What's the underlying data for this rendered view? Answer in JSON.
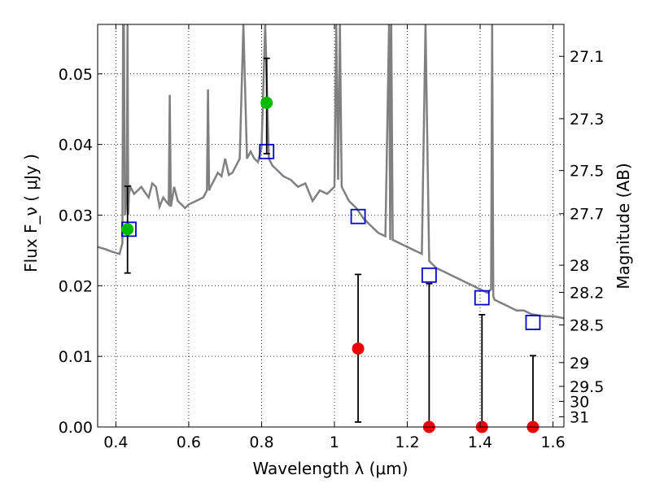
{
  "chart_data": {
    "type": "scatter",
    "xlabel": "Wavelength  λ (μm)",
    "ylabel": "Flux  F_ν  ( μJy )",
    "y2label": "Magnitude (AB)",
    "xlim": [
      0.35,
      1.63
    ],
    "ylim": [
      0.0,
      0.057
    ],
    "grid": true,
    "x_ticks": [
      0.4,
      0.6,
      0.8,
      1.0,
      1.2,
      1.4,
      1.6
    ],
    "x_tick_labels": [
      "0.4",
      "0.6",
      "0.8",
      "1",
      "1.2",
      "1.4",
      "1.6"
    ],
    "y_ticks": [
      0.0,
      0.01,
      0.02,
      0.03,
      0.04,
      0.05
    ],
    "y_tick_labels": [
      "0.00",
      "0.01",
      "0.02",
      "0.03",
      "0.04",
      "0.05"
    ],
    "mag_ticks": [
      "27.1",
      "27.3",
      "27.5",
      "27.7",
      "28",
      "28.2",
      "28.5",
      "29",
      "29.5",
      "30",
      "31"
    ],
    "colors": {
      "model": "#808080",
      "model_photometry": "#0000cc",
      "detection": "#00bb00",
      "upper_limit": "#ee0000",
      "error_bar": "#000000"
    },
    "series": [
      {
        "kind": "model_spectrum",
        "x": [
          0.35,
          0.37,
          0.39,
          0.41,
          0.418,
          0.42,
          0.422,
          0.425,
          0.43,
          0.432,
          0.434,
          0.436,
          0.44,
          0.445,
          0.45,
          0.46,
          0.47,
          0.48,
          0.49,
          0.5,
          0.51,
          0.52,
          0.53,
          0.54,
          0.545,
          0.548,
          0.551,
          0.56,
          0.57,
          0.58,
          0.59,
          0.6,
          0.62,
          0.64,
          0.65,
          0.653,
          0.656,
          0.66,
          0.67,
          0.68,
          0.69,
          0.7,
          0.71,
          0.72,
          0.73,
          0.74,
          0.75,
          0.76,
          0.77,
          0.78,
          0.79,
          0.8,
          0.81,
          0.82,
          0.83,
          0.84,
          0.86,
          0.88,
          0.9,
          0.92,
          0.94,
          0.96,
          0.98,
          1.0,
          1.005,
          1.01,
          1.015,
          1.02,
          1.03,
          1.04,
          1.06,
          1.08,
          1.09,
          1.1,
          1.12,
          1.14,
          1.15,
          1.153,
          1.156,
          1.16,
          1.18,
          1.2,
          1.22,
          1.24,
          1.25,
          1.26,
          1.28,
          1.3,
          1.32,
          1.34,
          1.36,
          1.38,
          1.4,
          1.42,
          1.43,
          1.433,
          1.436,
          1.44,
          1.46,
          1.48,
          1.5,
          1.52,
          1.54,
          1.56,
          1.58,
          1.6,
          1.63
        ],
        "y": [
          0.0255,
          0.0252,
          0.0248,
          0.0245,
          0.026,
          0.057,
          0.057,
          0.03,
          0.033,
          0.057,
          0.03,
          0.033,
          0.034,
          0.0335,
          0.033,
          0.0335,
          0.034,
          0.0332,
          0.0325,
          0.0345,
          0.034,
          0.0312,
          0.0325,
          0.0318,
          0.0315,
          0.047,
          0.0312,
          0.034,
          0.032,
          0.0315,
          0.031,
          0.0315,
          0.032,
          0.0325,
          0.0335,
          0.0478,
          0.0335,
          0.034,
          0.035,
          0.036,
          0.0355,
          0.038,
          0.0357,
          0.036,
          0.037,
          0.038,
          0.057,
          0.038,
          0.039,
          0.038,
          0.0375,
          0.0395,
          0.057,
          0.038,
          0.037,
          0.0365,
          0.0355,
          0.035,
          0.034,
          0.0345,
          0.032,
          0.0335,
          0.033,
          0.034,
          0.057,
          0.035,
          0.057,
          0.034,
          0.033,
          0.032,
          0.031,
          0.0295,
          0.029,
          0.0285,
          0.0275,
          0.027,
          0.057,
          0.0265,
          0.057,
          0.0265,
          0.026,
          0.0255,
          0.025,
          0.0245,
          0.057,
          0.0235,
          0.0225,
          0.022,
          0.0215,
          0.021,
          0.0205,
          0.02,
          0.0195,
          0.019,
          0.0195,
          0.057,
          0.0185,
          0.018,
          0.0175,
          0.017,
          0.0165,
          0.0165,
          0.016,
          0.0158,
          0.0157,
          0.0157,
          0.0154
        ]
      },
      {
        "kind": "model_photometry",
        "x": [
          0.436,
          0.814,
          1.065,
          1.26,
          1.405,
          1.545
        ],
        "y": [
          0.028,
          0.039,
          0.0298,
          0.0215,
          0.0183,
          0.0148
        ]
      },
      {
        "kind": "observed_detection",
        "x": [
          0.432,
          0.814
        ],
        "y": [
          0.028,
          0.0459
        ],
        "yerr_low": [
          0.0218,
          0.0387
        ],
        "yerr_high": [
          0.0341,
          0.0522
        ]
      },
      {
        "kind": "observed_upper_limit",
        "x": [
          1.065,
          1.26,
          1.405,
          1.545
        ],
        "y": [
          0.0111,
          0.0,
          0.0,
          0.0
        ],
        "yerr_low": [
          0.0007,
          0.0,
          0.0,
          0.0
        ],
        "yerr_high": [
          0.0216,
          0.0203,
          0.0159,
          0.0101
        ]
      }
    ]
  }
}
